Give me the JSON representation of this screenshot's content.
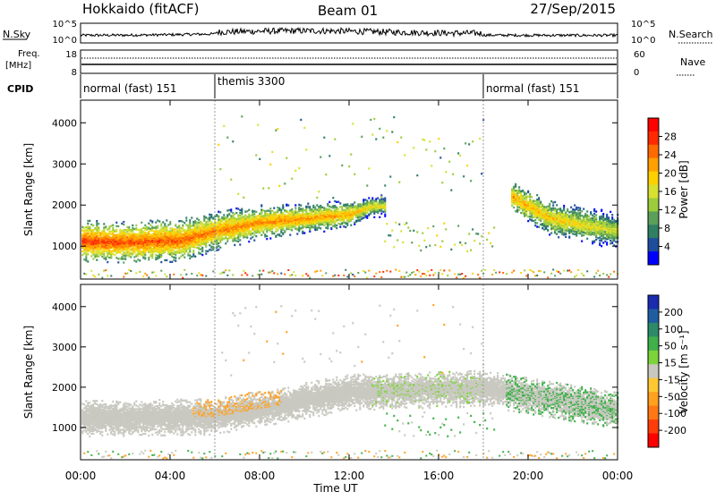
{
  "header": {
    "station": "Hokkaido (fitACF)",
    "beam": "Beam 01",
    "date": "27/Sep/2015"
  },
  "top_panels": {
    "nsky_label": "N.Sky",
    "nsky_ticks": [
      "10^5",
      "10^0"
    ],
    "nsearch_label": "N.Search",
    "nsearch_ticks": [
      "10^5",
      "10^0"
    ],
    "freq_label_line1": "Freq.",
    "freq_label_line2": "[MHz]",
    "freq_ticks": [
      "18",
      "8"
    ],
    "nave_label": "Nave",
    "nave_ticks": [
      "60",
      "0"
    ],
    "cpid_label": "CPID",
    "cpid_segments": [
      {
        "label": "normal (fast) 151",
        "start_hour": 0,
        "end_hour": 6
      },
      {
        "label": "themis 3300",
        "start_hour": 6,
        "end_hour": 18
      },
      {
        "label": "normal (fast) 151",
        "start_hour": 18,
        "end_hour": 24
      }
    ]
  },
  "power_colorbar": {
    "label": "Power [dB]",
    "ticks": [
      "28",
      "24",
      "20",
      "16",
      "12",
      "8",
      "4"
    ],
    "colors": [
      "#ff0000",
      "#ff2a00",
      "#ff6a00",
      "#ffa000",
      "#ffd000",
      "#d8e030",
      "#9ccc3c",
      "#5aa05a",
      "#2f7f63",
      "#1e4d9e",
      "#0000ff"
    ]
  },
  "velocity_colorbar": {
    "label": "Velocity [m s⁻¹]",
    "ticks": [
      "200",
      "100",
      "50",
      "15",
      "-15",
      "-50",
      "-100",
      "-200"
    ],
    "colors": [
      "#1a2bb0",
      "#1e5ea0",
      "#2c8a68",
      "#3fb04a",
      "#7dd33a",
      "#c8c8c0",
      "#ffc832",
      "#ffa01e",
      "#ff7814",
      "#ff3c0a",
      "#ff0000"
    ]
  },
  "chart_data": {
    "type": "heatmap",
    "xlabel": "Time UT",
    "x_ticks": [
      "00:00",
      "04:00",
      "08:00",
      "12:00",
      "16:00",
      "20:00",
      "00:00"
    ],
    "x_range_hours": [
      0,
      24
    ],
    "ylabel": "Slant Range [km]",
    "y_ticks": [
      1000,
      2000,
      3000,
      4000
    ],
    "ylim": [
      200,
      4550
    ],
    "grid": false,
    "panels": [
      {
        "quantity": "Power [dB]",
        "ridge": [
          {
            "t": 0.0,
            "center": 1150,
            "width": 330,
            "value": 30
          },
          {
            "t": 2.0,
            "center": 1120,
            "width": 330,
            "value": 29
          },
          {
            "t": 4.5,
            "center": 1170,
            "width": 350,
            "value": 28
          },
          {
            "t": 6.0,
            "center": 1400,
            "width": 320,
            "value": 26
          },
          {
            "t": 8.0,
            "center": 1600,
            "width": 280,
            "value": 26
          },
          {
            "t": 10.0,
            "center": 1700,
            "width": 250,
            "value": 25
          },
          {
            "t": 12.0,
            "center": 1800,
            "width": 230,
            "value": 24
          },
          {
            "t": 13.0,
            "center": 2000,
            "width": 180,
            "value": 20
          }
        ],
        "late_ridge": [
          {
            "t": 19.2,
            "center": 2250,
            "width": 250,
            "value": 24
          },
          {
            "t": 21.0,
            "center": 1700,
            "width": 300,
            "value": 22
          },
          {
            "t": 23.9,
            "center": 1400,
            "width": 320,
            "value": 18
          }
        ]
      },
      {
        "quantity": "Velocity [m s⁻¹]",
        "note_band_center": [
          {
            "t": 0.0,
            "center": 1250
          },
          {
            "t": 6.0,
            "center": 1300
          },
          {
            "t": 12.0,
            "center": 1900
          },
          {
            "t": 18.0,
            "center": 2000
          },
          {
            "t": 24.0,
            "center": 1450
          }
        ]
      }
    ]
  }
}
